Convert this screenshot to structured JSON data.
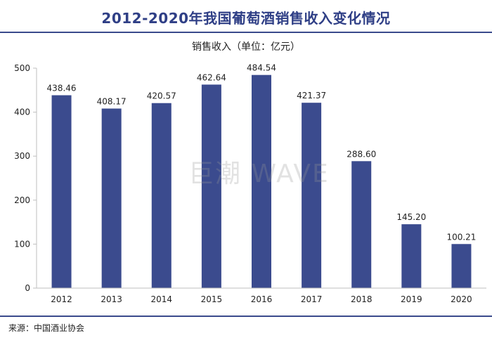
{
  "title": "2012-2020年我国葡萄酒销售收入变化情况",
  "source": "来源：中国酒业协会",
  "watermark": "巨潮 WAVE",
  "colors": {
    "bar": "#3b4b8e",
    "title": "#2f3f86",
    "axis": "#bfbfbf"
  },
  "chart_data": {
    "type": "bar",
    "title": "销售收入（单位：亿元）",
    "categories": [
      "2012",
      "2013",
      "2014",
      "2015",
      "2016",
      "2017",
      "2018",
      "2019",
      "2020"
    ],
    "values": [
      438.46,
      408.17,
      420.57,
      462.64,
      484.54,
      421.37,
      288.6,
      145.2,
      100.21
    ],
    "data_labels": [
      "438.46",
      "408.17",
      "420.57",
      "462.64",
      "484.54",
      "421.37",
      "288.60",
      "145.20",
      "100.21"
    ],
    "yticks": [
      0,
      100,
      200,
      300,
      400,
      500
    ],
    "ylim": [
      0,
      500
    ],
    "xlabel": "",
    "ylabel": "",
    "grid": false,
    "legend": "none"
  }
}
